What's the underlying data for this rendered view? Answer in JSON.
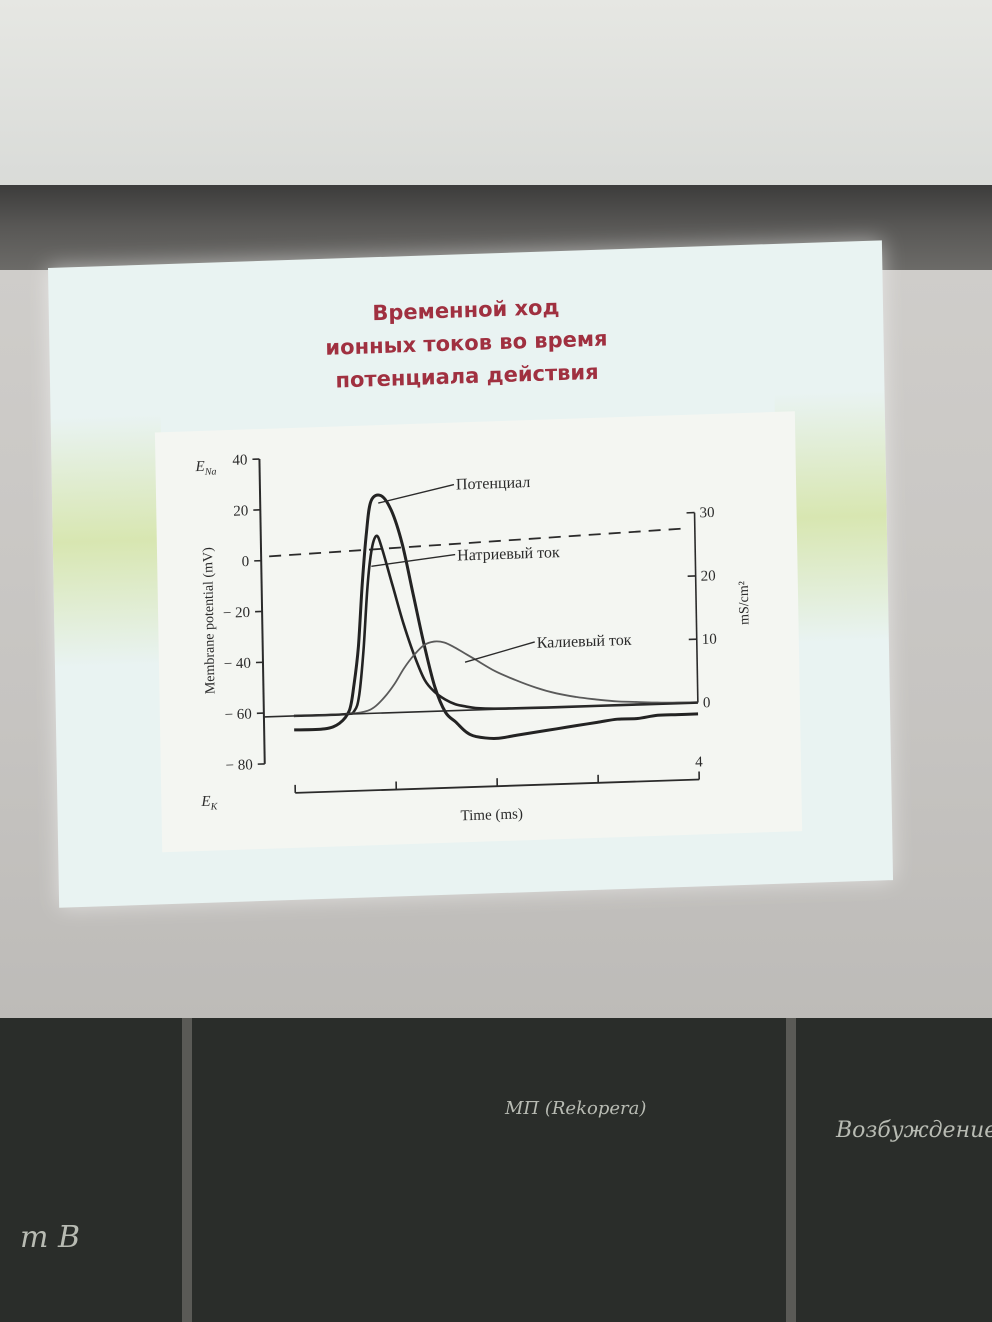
{
  "slide": {
    "title_lines": [
      "Временной ход",
      "ионных токов во время",
      "потенциала действия"
    ]
  },
  "chart_data": {
    "type": "line",
    "xlabel": "Time (ms)",
    "x_tick_labels": [
      "4"
    ],
    "x_range": [
      0,
      4
    ],
    "ylabel_left": "Membrane potential (mV)",
    "ylim_left": [
      -80,
      40
    ],
    "yticks_left": [
      "40",
      "20",
      "0",
      "− 20",
      "− 40",
      "− 60",
      "− 80"
    ],
    "ylabel_right": "mS/cm²",
    "ylim_right": [
      0,
      30
    ],
    "yticks_right": [
      "30",
      "20",
      "10",
      "0"
    ],
    "e_na_label": "E",
    "e_na_sub": "Na",
    "e_k_label": "E",
    "e_k_sub": "K",
    "annotations": {
      "potential": "Потенциал",
      "sodium": "Натриевый ток",
      "potassium": "Калиевый ток"
    },
    "series": [
      {
        "name": "Потенциал",
        "axis": "left",
        "x": [
          0,
          0.3,
          0.45,
          0.55,
          0.6,
          0.65,
          0.7,
          0.75,
          0.8,
          0.9,
          1.0,
          1.1,
          1.2,
          1.3,
          1.4,
          1.5,
          1.6,
          1.7,
          1.8,
          2.0,
          2.2,
          2.4,
          2.6,
          2.8,
          3.0,
          3.2,
          3.4,
          3.6,
          3.8,
          4.0
        ],
        "y": [
          -67,
          -67,
          -65,
          -60,
          -50,
          -35,
          -10,
          10,
          22,
          24,
          18,
          5,
          -15,
          -35,
          -52,
          -62,
          -66,
          -70,
          -72,
          -73,
          -72,
          -71,
          -70,
          -69,
          -68,
          -67,
          -67,
          -66,
          -66,
          -66
        ]
      },
      {
        "name": "Натриевый ток",
        "axis": "right",
        "x": [
          0,
          0.5,
          0.6,
          0.65,
          0.7,
          0.75,
          0.8,
          0.85,
          0.9,
          1.0,
          1.1,
          1.2,
          1.3,
          1.4,
          1.5,
          1.6,
          1.7,
          1.8,
          2.0,
          2.5,
          3.0,
          4.0
        ],
        "y": [
          0,
          0,
          0.5,
          3,
          10,
          20,
          26,
          28,
          26,
          20,
          14,
          9,
          5,
          3,
          1.8,
          1,
          0.6,
          0.3,
          0.1,
          0,
          0,
          0
        ]
      },
      {
        "name": "Калиевый ток",
        "axis": "right",
        "x": [
          0,
          0.5,
          0.7,
          0.8,
          0.9,
          1.0,
          1.1,
          1.2,
          1.3,
          1.4,
          1.5,
          1.6,
          1.7,
          1.8,
          2.0,
          2.2,
          2.4,
          2.6,
          2.8,
          3.0,
          3.2,
          3.4,
          3.6,
          3.8,
          4.0
        ],
        "y": [
          0,
          0,
          0.3,
          1,
          2.5,
          4.5,
          7,
          9,
          10.5,
          11,
          10.8,
          10,
          9,
          8,
          6,
          4.5,
          3.2,
          2.2,
          1.5,
          1,
          0.6,
          0.4,
          0.2,
          0.1,
          0
        ]
      }
    ],
    "dashed_reference": {
      "axis": "left",
      "y": 0
    }
  },
  "blackboard": {
    "chalk_texts": [
      "m B",
      "МП (Rekopera)",
      "Возбуждение"
    ]
  },
  "colors": {
    "slide_bg": "#e9f3f2",
    "title": "#a03040",
    "lines": "#2b2b2b",
    "potassium_line": "#6a6a6a"
  }
}
